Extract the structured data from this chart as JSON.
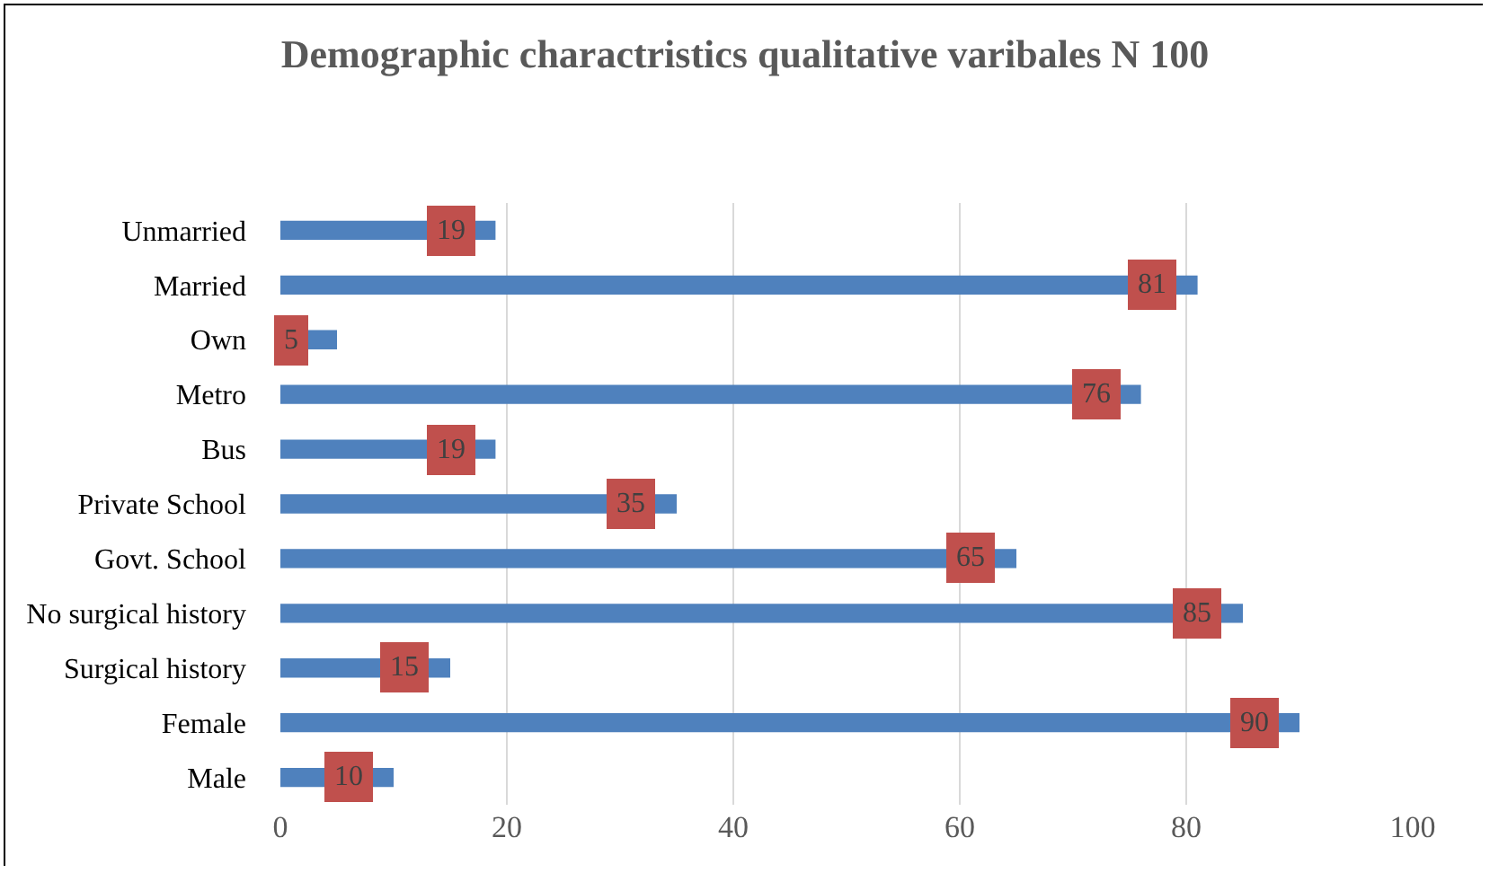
{
  "chart_data": {
    "type": "bar",
    "orientation": "horizontal",
    "title": "Demographic charactristics qualitative varibales N 100",
    "categories": [
      "Unmarried",
      "Married",
      "Own",
      "Metro",
      "Bus",
      "Private School",
      "Govt. School",
      "No surgical history",
      "Surgical history",
      "Female",
      "Male"
    ],
    "values": [
      19,
      81,
      5,
      76,
      19,
      35,
      65,
      85,
      15,
      90,
      10
    ],
    "color": "#4f81bd",
    "xlim": [
      0,
      100
    ],
    "xticks": [
      0,
      20,
      40,
      60,
      80,
      100
    ],
    "grid": "x",
    "data_labels": true
  }
}
